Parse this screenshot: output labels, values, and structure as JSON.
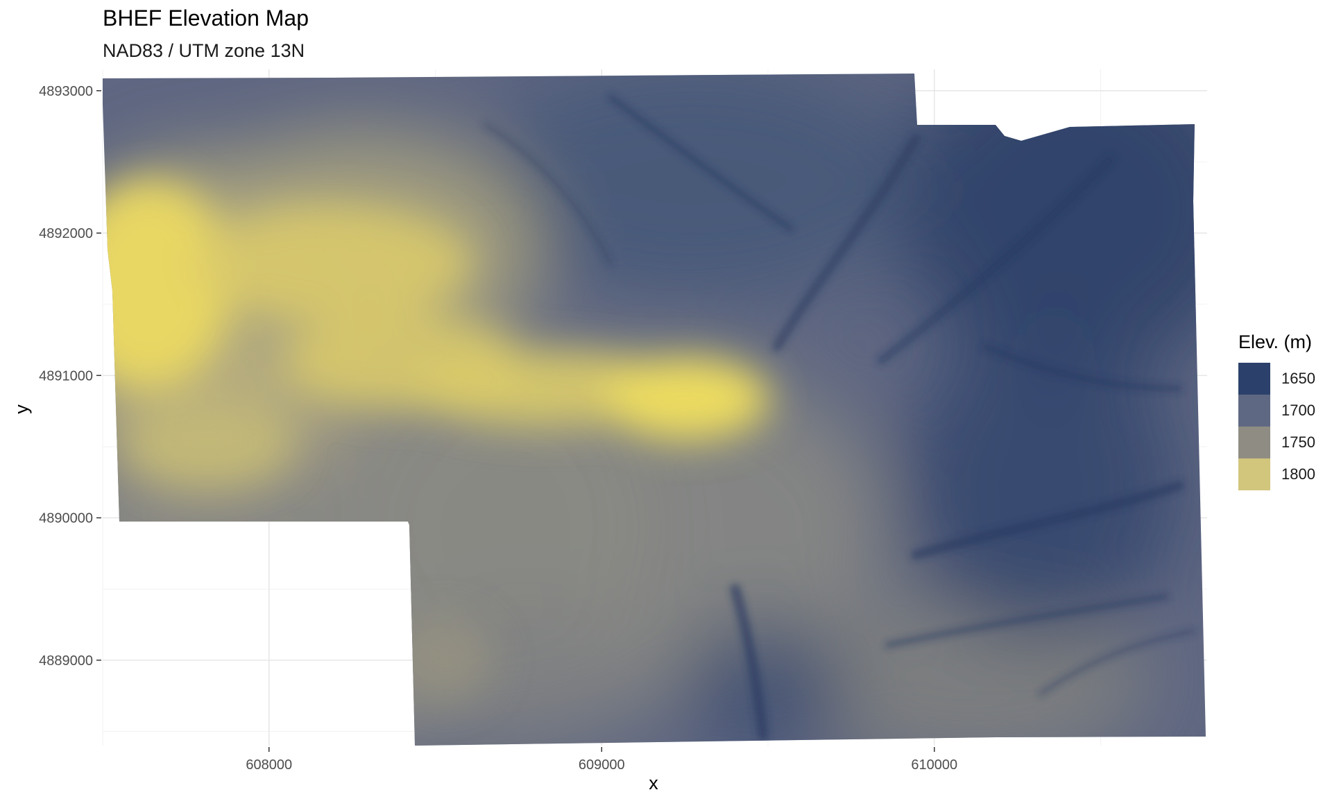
{
  "title": "BHEF Elevation Map",
  "subtitle": "NAD83 / UTM zone 13N",
  "chart_data": {
    "type": "heatmap",
    "xlabel": "x",
    "ylabel": "y",
    "xlim": [
      607500,
      610820
    ],
    "ylim": [
      4888400,
      4893150
    ],
    "x_ticks": [
      608000,
      609000,
      610000
    ],
    "y_ticks": [
      4889000,
      4890000,
      4891000,
      4892000,
      4893000
    ],
    "x_tick_labels": [
      "608000",
      "609000",
      "610000"
    ],
    "y_tick_labels": [
      "4889000",
      "4890000",
      "4891000",
      "4892000",
      "4893000"
    ],
    "grid": true,
    "legend_position": "right",
    "legend": {
      "title": "Elev. (m)",
      "entries": [
        {
          "label": "1650",
          "color": "#2b416b"
        },
        {
          "label": "1700",
          "color": "#5f6882"
        },
        {
          "label": "1750",
          "color": "#8f8d83"
        },
        {
          "label": "1800",
          "color": "#d2c57c"
        }
      ]
    },
    "colors": {
      "low": "#22365f",
      "mid": "#8c8b83",
      "high": "#f4e35a"
    },
    "elevation_range": [
      1630,
      1830
    ],
    "peak_regions": [
      {
        "x": 607550,
        "y": 4891600,
        "elevation": 1825
      },
      {
        "x": 608350,
        "y": 4891750,
        "elevation": 1810
      },
      {
        "x": 609150,
        "y": 4890700,
        "elevation": 1815
      },
      {
        "x": 608200,
        "y": 4891050,
        "elevation": 1790
      }
    ]
  }
}
